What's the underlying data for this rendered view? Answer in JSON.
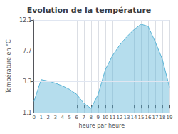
{
  "chart_data": {
    "type": "area",
    "title": "Evolution de la température",
    "xlabel": "heure par heure",
    "ylabel": "Température en °C",
    "x": [
      0,
      1,
      2,
      3,
      4,
      5,
      6,
      7,
      8,
      9,
      10,
      11,
      12,
      13,
      14,
      15,
      16,
      17,
      18,
      19
    ],
    "values": [
      0.5,
      3.6,
      3.4,
      3.1,
      2.7,
      2.2,
      1.5,
      0.2,
      -0.5,
      1.5,
      5.0,
      7.0,
      8.5,
      9.7,
      10.7,
      11.5,
      11.2,
      9.0,
      6.5,
      2.5
    ],
    "color": "#5ab4d6",
    "xlim": [
      0,
      19
    ],
    "xticks": [
      0,
      1,
      2,
      3,
      4,
      5,
      6,
      7,
      8,
      9,
      10,
      11,
      12,
      13,
      14,
      15,
      16,
      17,
      18,
      19
    ],
    "ylim": [
      -1.1,
      12.1
    ],
    "yticks": [
      -1.1,
      3.3,
      7.7,
      12.1
    ],
    "grid": true
  }
}
